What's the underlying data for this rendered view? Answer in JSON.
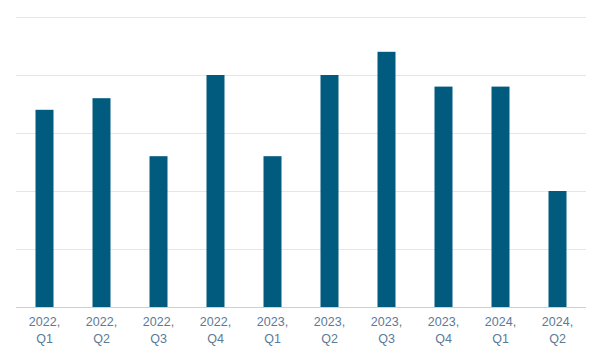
{
  "chart_data": {
    "type": "bar",
    "categories": [
      "2022, Q1",
      "2022, Q2",
      "2022, Q3",
      "2022, Q4",
      "2023, Q1",
      "2023, Q2",
      "2023, Q3",
      "2023, Q4",
      "2024, Q1",
      "2024, Q2"
    ],
    "values": [
      3.4,
      3.6,
      2.6,
      4.0,
      2.6,
      4.0,
      4.4,
      3.8,
      3.8,
      2.0
    ],
    "color": "#005b7f",
    "ylim": [
      0,
      5
    ],
    "yticks": [
      0,
      1,
      2,
      3,
      4,
      5
    ],
    "grid": true,
    "tick_labels": "x"
  }
}
